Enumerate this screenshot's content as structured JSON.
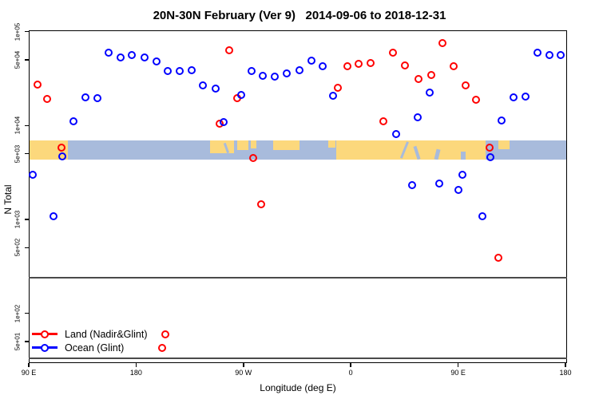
{
  "chart_data": {
    "type": "scatter",
    "title": "20N-30N February (Ver 9)   2014-09-06 to 2018-12-31",
    "xlabel": "Longitude (deg E)",
    "ylabel": "N Total",
    "x_axis": {
      "unit": "deg E (wrapped, spans 450 degrees starting at 90E)",
      "range": [
        90,
        540
      ],
      "ticks": [
        {
          "lon": 90,
          "label": "90 E"
        },
        {
          "lon": 180,
          "label": "180"
        },
        {
          "lon": 270,
          "label": "90 W"
        },
        {
          "lon": 360,
          "label": "0"
        },
        {
          "lon": 450,
          "label": "90 E"
        },
        {
          "lon": 540,
          "label": "180"
        }
      ]
    },
    "y_axis": {
      "scale": "log10",
      "range": [
        29,
        103000
      ],
      "ticks": [
        {
          "value": 100000,
          "label": "1e+05"
        },
        {
          "value": 50000,
          "label": "5e+04"
        },
        {
          "value": 10000,
          "label": "1e+04"
        },
        {
          "value": 5000,
          "label": "5e+03"
        },
        {
          "value": 1000,
          "label": "1e+03"
        },
        {
          "value": 500,
          "label": "5e+02"
        },
        {
          "value": 100,
          "label": "1e+02"
        },
        {
          "value": 50,
          "label": "5e+01"
        }
      ]
    },
    "divider_values": [
      240,
      33
    ],
    "map_band": {
      "top_value": 6900,
      "bottom_value": 4300,
      "ocean_color": "#a8bbdc",
      "land_color": "#fcd87c",
      "land_segments": [
        {
          "from": 90,
          "to": 123,
          "y0": 0,
          "y1": 1
        },
        {
          "from": 242,
          "to": 262,
          "y0": 0,
          "y1": 0.65
        },
        {
          "from": 265,
          "to": 274,
          "y0": 0,
          "y1": 0.5
        },
        {
          "from": 276,
          "to": 281,
          "y0": 0,
          "y1": 0.4
        },
        {
          "from": 295,
          "to": 317,
          "y0": 0,
          "y1": 0.5
        },
        {
          "from": 341,
          "to": 347,
          "y0": 0,
          "y1": 0.35
        },
        {
          "from": 348,
          "to": 473,
          "y0": 0,
          "y1": 1
        },
        {
          "from": 484,
          "to": 493,
          "y0": 0,
          "y1": 0.45
        }
      ],
      "water_slashes": [
        {
          "lon": 404,
          "y0": 0.05,
          "y1": 0.95,
          "w": 3,
          "angle": 22
        },
        {
          "lon": 414,
          "y0": 0.3,
          "y1": 1,
          "w": 4,
          "angle": -18
        },
        {
          "lon": 431,
          "y0": 0.45,
          "y1": 1,
          "w": 5,
          "angle": 14
        },
        {
          "lon": 452,
          "y0": 0.55,
          "y1": 1,
          "w": 6,
          "angle": 0
        },
        {
          "lon": 255,
          "y0": 0.1,
          "y1": 0.65,
          "w": 3,
          "angle": -20
        }
      ]
    },
    "series": [
      {
        "name": "Land (Nadir&Glint)",
        "color": "#ff0000",
        "points": [
          [
            97.4,
            27300
          ],
          [
            105.4,
            19200
          ],
          [
            117.5,
            5820
          ],
          [
            201.8,
            42.7
          ],
          [
            204.5,
            59.6
          ],
          [
            250.0,
            10500
          ],
          [
            258.1,
            63400
          ],
          [
            264.8,
            19600
          ],
          [
            278.2,
            4510
          ],
          [
            284.9,
            1450
          ],
          [
            349.1,
            25200
          ],
          [
            357.2,
            42800
          ],
          [
            366.5,
            45400
          ],
          [
            376.6,
            46300
          ],
          [
            387.3,
            11100
          ],
          [
            395.3,
            59700
          ],
          [
            405.4,
            43700
          ],
          [
            416.8,
            31300
          ],
          [
            427.5,
            34500
          ],
          [
            436.9,
            75500
          ],
          [
            446.2,
            42800
          ],
          [
            456.3,
            26800
          ],
          [
            465.0,
            18800
          ],
          [
            476.4,
            5820
          ],
          [
            483.7,
            390
          ]
        ]
      },
      {
        "name": "Ocean (Glint)",
        "color": "#0000ff",
        "points": [
          [
            93.3,
            2990
          ],
          [
            110.8,
            1080
          ],
          [
            118.1,
            4690
          ],
          [
            127.5,
            11100
          ],
          [
            137.5,
            19900
          ],
          [
            147.6,
            19600
          ],
          [
            157.0,
            59700
          ],
          [
            167.0,
            53100
          ],
          [
            176.4,
            56200
          ],
          [
            187.1,
            53100
          ],
          [
            197.1,
            48100
          ],
          [
            206.5,
            38000
          ],
          [
            216.6,
            38000
          ],
          [
            226.6,
            38800
          ],
          [
            236.0,
            26800
          ],
          [
            246.7,
            24700
          ],
          [
            253.4,
            10900
          ],
          [
            268.1,
            21100
          ],
          [
            276.8,
            38000
          ],
          [
            286.2,
            33800
          ],
          [
            296.2,
            33100
          ],
          [
            306.3,
            35900
          ],
          [
            317.0,
            38800
          ],
          [
            327.0,
            49000
          ],
          [
            336.4,
            42800
          ],
          [
            345.1,
            20700
          ],
          [
            398.0,
            8100
          ],
          [
            411.4,
            2320
          ],
          [
            416.1,
            12200
          ],
          [
            426.2,
            22400
          ],
          [
            434.2,
            2410
          ],
          [
            450.3,
            2060
          ],
          [
            453.6,
            2990
          ],
          [
            470.4,
            1080
          ],
          [
            477.1,
            4590
          ],
          [
            486.4,
            11300
          ],
          [
            496.5,
            20000
          ],
          [
            506.5,
            20200
          ],
          [
            516.6,
            60300
          ],
          [
            526.6,
            56800
          ],
          [
            536.0,
            56800
          ]
        ]
      }
    ],
    "legend": {
      "position": "bottom-left"
    }
  }
}
